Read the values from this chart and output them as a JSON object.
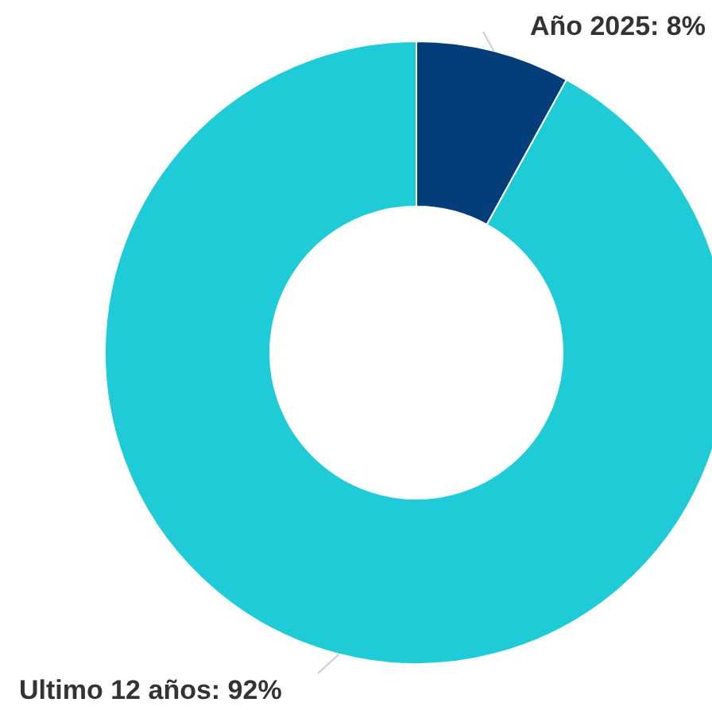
{
  "chart_data": {
    "type": "donut",
    "categories": [
      "Año 2025",
      "Ultimo 12 años"
    ],
    "values": [
      8,
      92
    ],
    "colors": [
      "#033d7a",
      "#1ecbd6"
    ],
    "value_labels": [
      "8%",
      "92%"
    ]
  }
}
